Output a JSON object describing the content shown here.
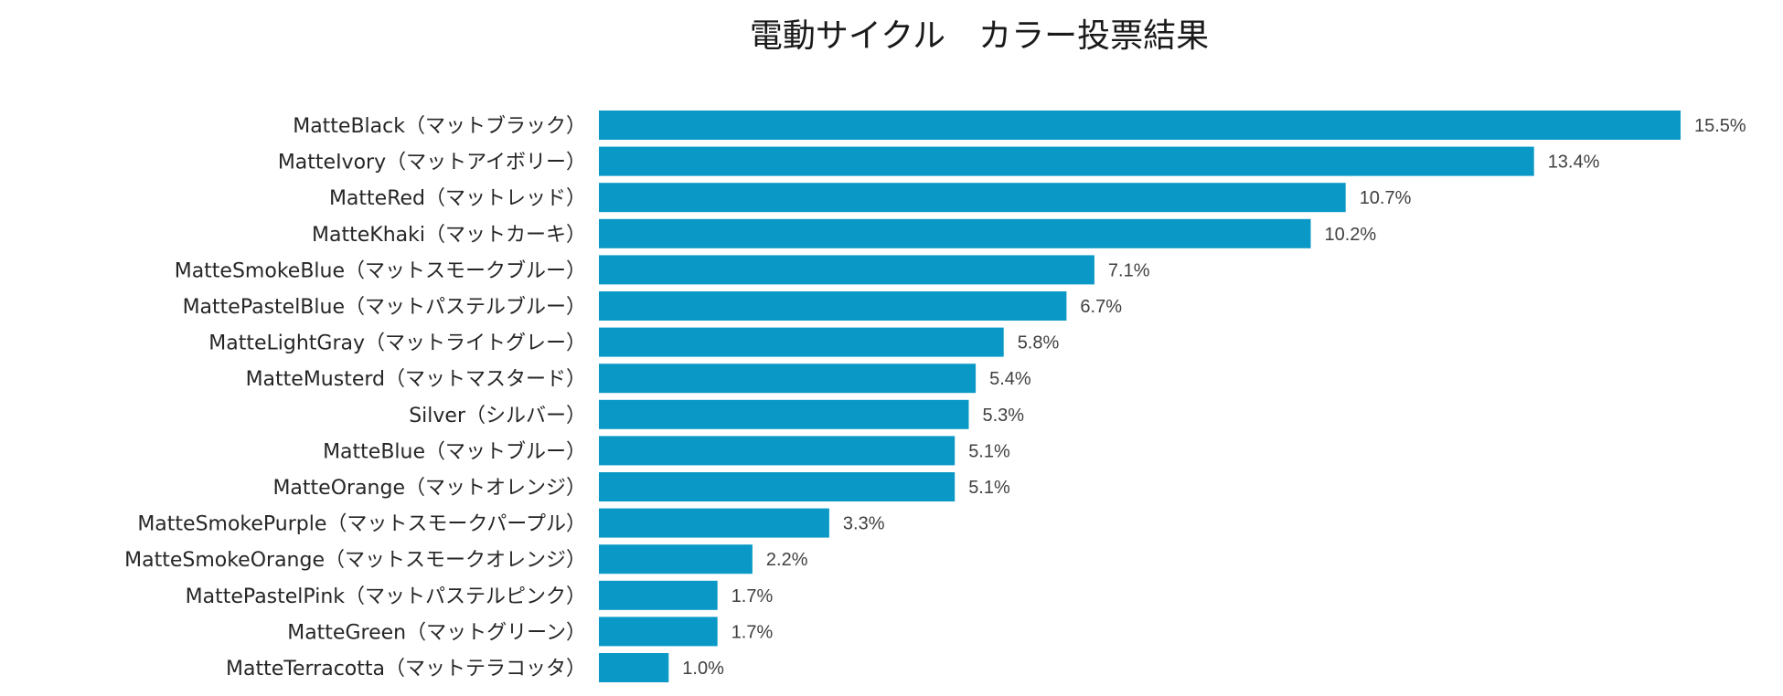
{
  "chart_data": {
    "type": "bar",
    "orientation": "horizontal",
    "title": "電動サイクル　カラー投票結果",
    "xlabel": "",
    "ylabel": "",
    "value_suffix": "%",
    "xlim": [
      0,
      15.5
    ],
    "grid": false,
    "legend": "none",
    "bar_color": "#0a99c6",
    "categories": [
      "MatteBlack（マットブラック）",
      "MatteIvory（マットアイボリー）",
      "MatteRed（マットレッド）",
      "MatteKhaki（マットカーキ）",
      "MatteSmokeBlue（マットスモークブルー）",
      "MattePastelBlue（マットパステルブルー）",
      "MatteLightGray（マットライトグレー）",
      "MatteMusterd（マットマスタード）",
      "Silver（シルバー）",
      "MatteBlue（マットブルー）",
      "MatteOrange（マットオレンジ）",
      "MatteSmokePurple（マットスモークパープル）",
      "MatteSmokeOrange（マットスモークオレンジ）",
      "MattePastelPink（マットパステルピンク）",
      "MatteGreen（マットグリーン）",
      "MatteTerracotta（マットテラコッタ）"
    ],
    "values": [
      15.5,
      13.4,
      10.7,
      10.2,
      7.1,
      6.7,
      5.8,
      5.4,
      5.3,
      5.1,
      5.1,
      3.3,
      2.2,
      1.7,
      1.7,
      1.0
    ],
    "value_labels": [
      "15.5%",
      "13.4%",
      "10.7%",
      "10.2%",
      "7.1%",
      "6.7%",
      "5.8%",
      "5.4%",
      "5.3%",
      "5.1%",
      "5.1%",
      "3.3%",
      "2.2%",
      "1.7%",
      "1.7%",
      "1.0%"
    ]
  }
}
